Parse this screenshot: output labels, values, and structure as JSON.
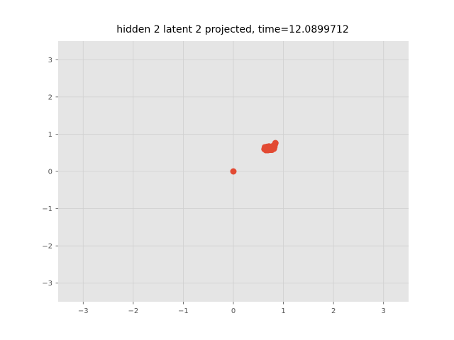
{
  "chart_data": {
    "type": "scatter",
    "title": "hidden 2 latent 2 projected, time=12.0899712",
    "xlabel": "",
    "ylabel": "",
    "xlim": [
      -3.5,
      3.5
    ],
    "ylim": [
      -3.5,
      3.5
    ],
    "xticks": [
      -3,
      -2,
      -1,
      0,
      1,
      2,
      3
    ],
    "yticks": [
      -3,
      -2,
      -1,
      0,
      1,
      2,
      3
    ],
    "xtick_labels": [
      "−3",
      "−2",
      "−1",
      "0",
      "1",
      "2",
      "3"
    ],
    "ytick_labels": [
      "−3",
      "−2",
      "−1",
      "0",
      "1",
      "2",
      "3"
    ],
    "grid": true,
    "series": [
      {
        "color": "#E24A33",
        "points": [
          [
            0.0,
            0.0
          ],
          [
            0.62,
            0.6
          ],
          [
            0.64,
            0.63
          ],
          [
            0.66,
            0.58
          ],
          [
            0.68,
            0.62
          ],
          [
            0.7,
            0.6
          ],
          [
            0.72,
            0.64
          ],
          [
            0.74,
            0.58
          ],
          [
            0.76,
            0.62
          ],
          [
            0.78,
            0.6
          ],
          [
            0.8,
            0.64
          ],
          [
            0.67,
            0.66
          ],
          [
            0.71,
            0.67
          ],
          [
            0.75,
            0.66
          ],
          [
            0.79,
            0.68
          ],
          [
            0.82,
            0.7
          ],
          [
            0.83,
            0.73
          ],
          [
            0.84,
            0.76
          ],
          [
            0.82,
            0.66
          ],
          [
            0.65,
            0.57
          ],
          [
            0.69,
            0.57
          ],
          [
            0.73,
            0.58
          ],
          [
            0.77,
            0.58
          ],
          [
            0.63,
            0.65
          ],
          [
            0.81,
            0.61
          ]
        ]
      }
    ],
    "background_color": "#E5E5E5",
    "grid_color": "#D0D0D0"
  }
}
